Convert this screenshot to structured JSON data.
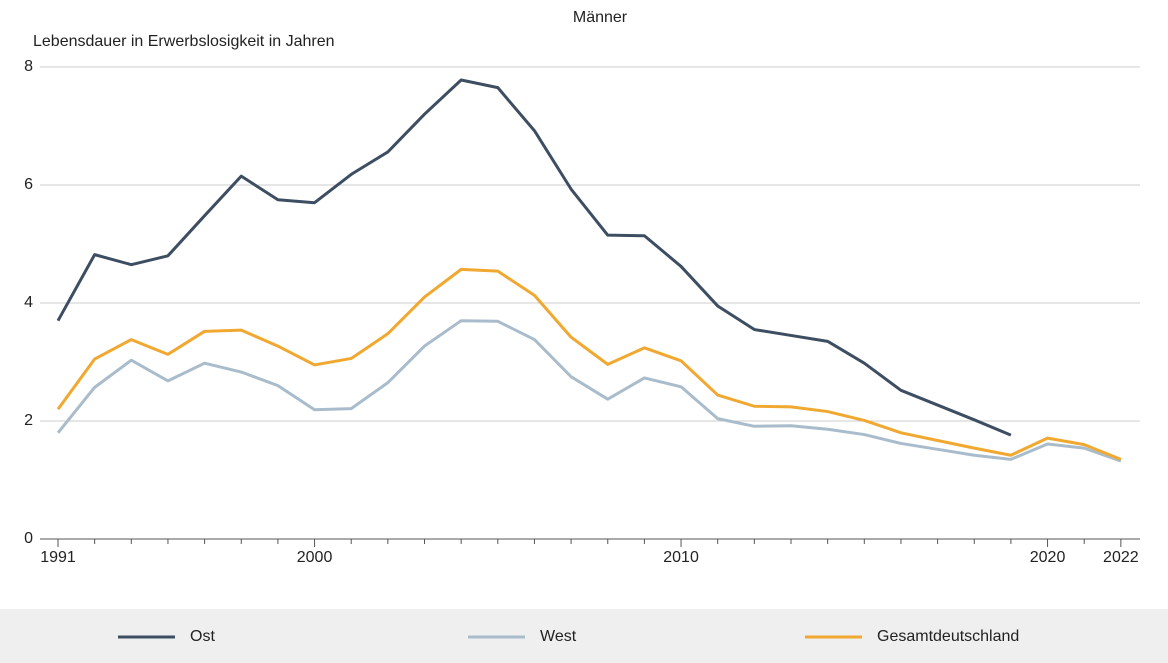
{
  "chart_data": {
    "type": "line",
    "title": "Männer",
    "y_label": "Lebensdauer in Erwerbslosigkeit in Jahren",
    "categories": [
      "1991",
      null,
      null,
      null,
      null,
      null,
      null,
      "2000",
      null,
      null,
      null,
      null,
      null,
      null,
      null,
      null,
      null,
      "2010",
      null,
      null,
      null,
      null,
      null,
      null,
      null,
      null,
      null,
      "2020",
      null,
      "2022"
    ],
    "ylim": [
      0,
      8
    ],
    "yticks": [
      0,
      2,
      4,
      6,
      8
    ],
    "grid": true,
    "legend": "bottom",
    "series": [
      {
        "name": "Ost",
        "color": "#3d4e63",
        "values": [
          3.7,
          4.82,
          4.65,
          4.8,
          5.48,
          6.15,
          5.75,
          5.7,
          6.18,
          6.56,
          7.2,
          7.78,
          7.65,
          6.92,
          5.93,
          5.15,
          5.14,
          4.62,
          3.95,
          3.55,
          3.45,
          3.35,
          2.98,
          2.52,
          2.27,
          2.02,
          1.76,
          null,
          null,
          null
        ]
      },
      {
        "name": "West",
        "color": "#a9bccb",
        "values": [
          1.8,
          2.57,
          3.03,
          2.68,
          2.98,
          2.83,
          2.6,
          2.19,
          2.21,
          2.65,
          3.27,
          3.7,
          3.69,
          3.38,
          2.75,
          2.37,
          2.73,
          2.58,
          2.04,
          1.91,
          1.92,
          1.86,
          1.77,
          1.62,
          1.52,
          1.42,
          1.35,
          1.61,
          1.54,
          1.32
        ]
      },
      {
        "name": "Gesamtdeutschland",
        "color": "#f0a830",
        "values": [
          2.2,
          3.05,
          3.38,
          3.13,
          3.52,
          3.54,
          3.27,
          2.95,
          3.06,
          3.48,
          4.1,
          4.57,
          4.54,
          4.13,
          3.42,
          2.96,
          3.24,
          3.02,
          2.44,
          2.25,
          2.24,
          2.16,
          2.01,
          1.8,
          1.67,
          1.54,
          1.42,
          1.71,
          1.6,
          1.35
        ]
      }
    ]
  }
}
